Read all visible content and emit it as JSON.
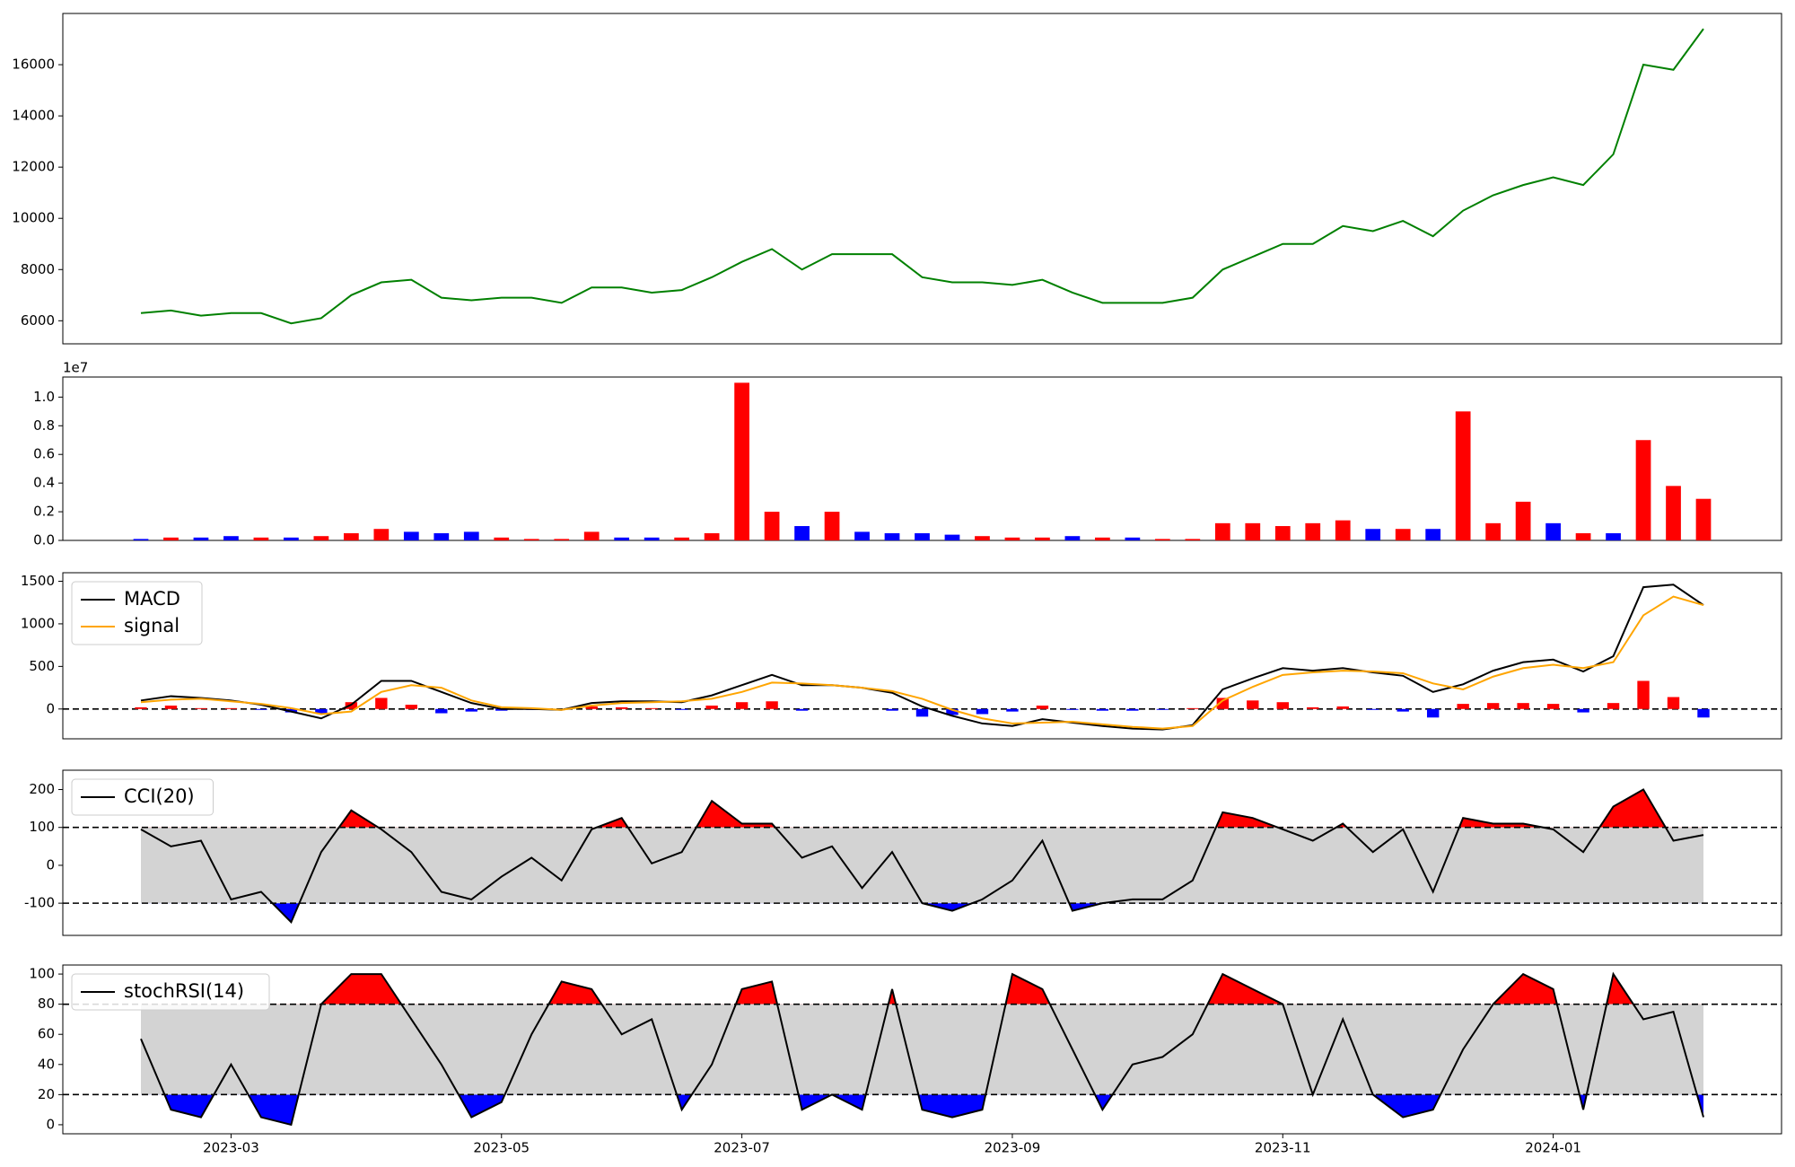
{
  "chart_data": [
    {
      "type": "line",
      "ylim": [
        5100,
        18000
      ],
      "yticks": [
        6000,
        8000,
        10000,
        12000,
        14000,
        16000
      ],
      "series": [
        {
          "color": "green",
          "values": [
            6300,
            6400,
            6200,
            6300,
            6300,
            5900,
            6100,
            7000,
            7500,
            7600,
            6900,
            6800,
            6900,
            6900,
            6700,
            7300,
            7300,
            7100,
            7200,
            7700,
            8300,
            8800,
            8000,
            8600,
            8600,
            8600,
            7700,
            7500,
            7500,
            7400,
            7600,
            7100,
            6700,
            6700,
            6700,
            6900,
            8000,
            8500,
            9000,
            9000,
            9700,
            9500,
            9900,
            9300,
            10300,
            10900,
            11300,
            11600,
            11300,
            12500,
            16000,
            15800,
            17400
          ]
        }
      ]
    },
    {
      "type": "bar",
      "offset_label": "1e7",
      "ylim": [
        0,
        1.14
      ],
      "yticks": [
        {
          "value": 0,
          "label": "0.0"
        },
        {
          "value": 0.2,
          "label": "0.2"
        },
        {
          "value": 0.4,
          "label": "0.4"
        },
        {
          "value": 0.6,
          "label": "0.6"
        },
        {
          "value": 0.8,
          "label": "0.8"
        },
        {
          "value": 1,
          "label": "1.0"
        }
      ],
      "values": [
        0.01,
        0.02,
        0.02,
        0.03,
        0.02,
        0.02,
        0.03,
        0.05,
        0.08,
        0.06,
        0.05,
        0.06,
        0.02,
        0.01,
        0.01,
        0.06,
        0.02,
        0.02,
        0.02,
        0.05,
        1.1,
        0.2,
        0.1,
        0.2,
        0.06,
        0.05,
        0.05,
        0.04,
        0.03,
        0.02,
        0.02,
        0.03,
        0.02,
        0.02,
        0.01,
        0.01,
        0.12,
        0.12,
        0.1,
        0.12,
        0.14,
        0.08,
        0.08,
        0.08,
        0.9,
        0.12,
        0.27,
        0.12,
        0.05,
        0.05,
        0.7,
        0.38,
        0.29
      ],
      "colors": [
        "blue",
        "red",
        "blue",
        "blue",
        "red",
        "blue",
        "red",
        "red",
        "red",
        "blue",
        "blue",
        "blue",
        "red",
        "red",
        "red",
        "red",
        "blue",
        "blue",
        "red",
        "red",
        "red",
        "red",
        "blue",
        "red",
        "blue",
        "blue",
        "blue",
        "blue",
        "red",
        "red",
        "red",
        "blue",
        "red",
        "blue",
        "red",
        "red",
        "red",
        "red",
        "red",
        "red",
        "red",
        "blue",
        "red",
        "blue",
        "red",
        "red",
        "red",
        "blue",
        "red",
        "blue",
        "red",
        "red",
        "red"
      ]
    },
    {
      "type": "line",
      "legend": "upper left",
      "zero_line": true,
      "ylim": [
        -350,
        1600
      ],
      "yticks": [
        0,
        500,
        1000,
        1500
      ],
      "series": [
        {
          "name": "MACD",
          "color": "black",
          "values": [
            100,
            150,
            130,
            100,
            50,
            -30,
            -110,
            50,
            330,
            330,
            200,
            70,
            0,
            0,
            -10,
            70,
            90,
            90,
            80,
            160,
            280,
            400,
            280,
            280,
            250,
            190,
            30,
            -80,
            -170,
            -200,
            -120,
            -160,
            -200,
            -230,
            -240,
            -190,
            230,
            360,
            480,
            450,
            480,
            430,
            390,
            200,
            290,
            450,
            550,
            580,
            440,
            620,
            1430,
            1460,
            1220
          ]
        },
        {
          "name": "signal",
          "color": "orange",
          "values": [
            80,
            110,
            120,
            90,
            60,
            10,
            -60,
            -30,
            200,
            280,
            250,
            100,
            20,
            10,
            -10,
            40,
            70,
            80,
            90,
            120,
            200,
            310,
            300,
            280,
            250,
            210,
            120,
            -10,
            -110,
            -170,
            -160,
            -150,
            -180,
            -210,
            -230,
            -200,
            100,
            260,
            400,
            430,
            450,
            440,
            420,
            300,
            230,
            380,
            480,
            520,
            480,
            550,
            1100,
            1320,
            1220
          ]
        }
      ],
      "histogram": {
        "up_color": "red",
        "down_color": "blue",
        "values": [
          20,
          40,
          10,
          10,
          -10,
          -40,
          -50,
          80,
          130,
          50,
          -50,
          -30,
          -20,
          -10,
          0,
          30,
          20,
          10,
          -10,
          40,
          80,
          90,
          -20,
          0,
          0,
          -20,
          -90,
          -70,
          -60,
          -30,
          40,
          -10,
          -20,
          -20,
          -10,
          10,
          130,
          100,
          80,
          20,
          30,
          -10,
          -30,
          -100,
          60,
          70,
          70,
          60,
          -40,
          70,
          330,
          140,
          -100
        ]
      }
    },
    {
      "type": "oscillator",
      "legend": "upper left",
      "ylim": [
        -185,
        251
      ],
      "yticks": [
        -100,
        0,
        100,
        200
      ],
      "thresholds": [
        -100,
        100
      ],
      "band_color": "lightgray",
      "above_color": "red",
      "below_color": "blue",
      "series": [
        {
          "name": "CCI(20)",
          "color": "black",
          "values": [
            95,
            50,
            65,
            -90,
            -70,
            -150,
            35,
            145,
            95,
            35,
            -70,
            -90,
            -30,
            20,
            -40,
            95,
            125,
            5,
            35,
            170,
            110,
            110,
            20,
            50,
            -60,
            35,
            -100,
            -120,
            -90,
            -40,
            65,
            -120,
            -100,
            -90,
            -90,
            -40,
            140,
            125,
            95,
            65,
            110,
            35,
            95,
            -70,
            125,
            110,
            110,
            95,
            35,
            155,
            200,
            65,
            80
          ]
        }
      ]
    },
    {
      "type": "oscillator",
      "legend": "upper left",
      "ylim": [
        -6,
        106
      ],
      "yticks": [
        0,
        20,
        40,
        60,
        80,
        100
      ],
      "thresholds": [
        20,
        80
      ],
      "band_color": "lightgray",
      "above_color": "red",
      "below_color": "blue",
      "categories": [
        null,
        null,
        null,
        "2023-03",
        null,
        null,
        null,
        null,
        null,
        null,
        null,
        null,
        "2023-05",
        null,
        null,
        null,
        null,
        null,
        null,
        null,
        "2023-07",
        null,
        null,
        null,
        null,
        null,
        null,
        null,
        null,
        "2023-09",
        null,
        null,
        null,
        null,
        null,
        null,
        null,
        null,
        "2023-11",
        null,
        null,
        null,
        null,
        null,
        null,
        null,
        null,
        "2024-01",
        null,
        null,
        null,
        null,
        null
      ],
      "series": [
        {
          "name": "stochRSI(14)",
          "color": "black",
          "values": [
            57,
            10,
            5,
            40,
            5,
            0,
            80,
            100,
            100,
            70,
            40,
            5,
            15,
            60,
            95,
            90,
            60,
            70,
            10,
            40,
            90,
            95,
            10,
            20,
            10,
            90,
            10,
            5,
            10,
            100,
            90,
            50,
            10,
            40,
            45,
            60,
            100,
            90,
            80,
            20,
            70,
            20,
            5,
            10,
            50,
            80,
            100,
            90,
            10,
            100,
            70,
            75,
            5
          ]
        }
      ]
    }
  ]
}
